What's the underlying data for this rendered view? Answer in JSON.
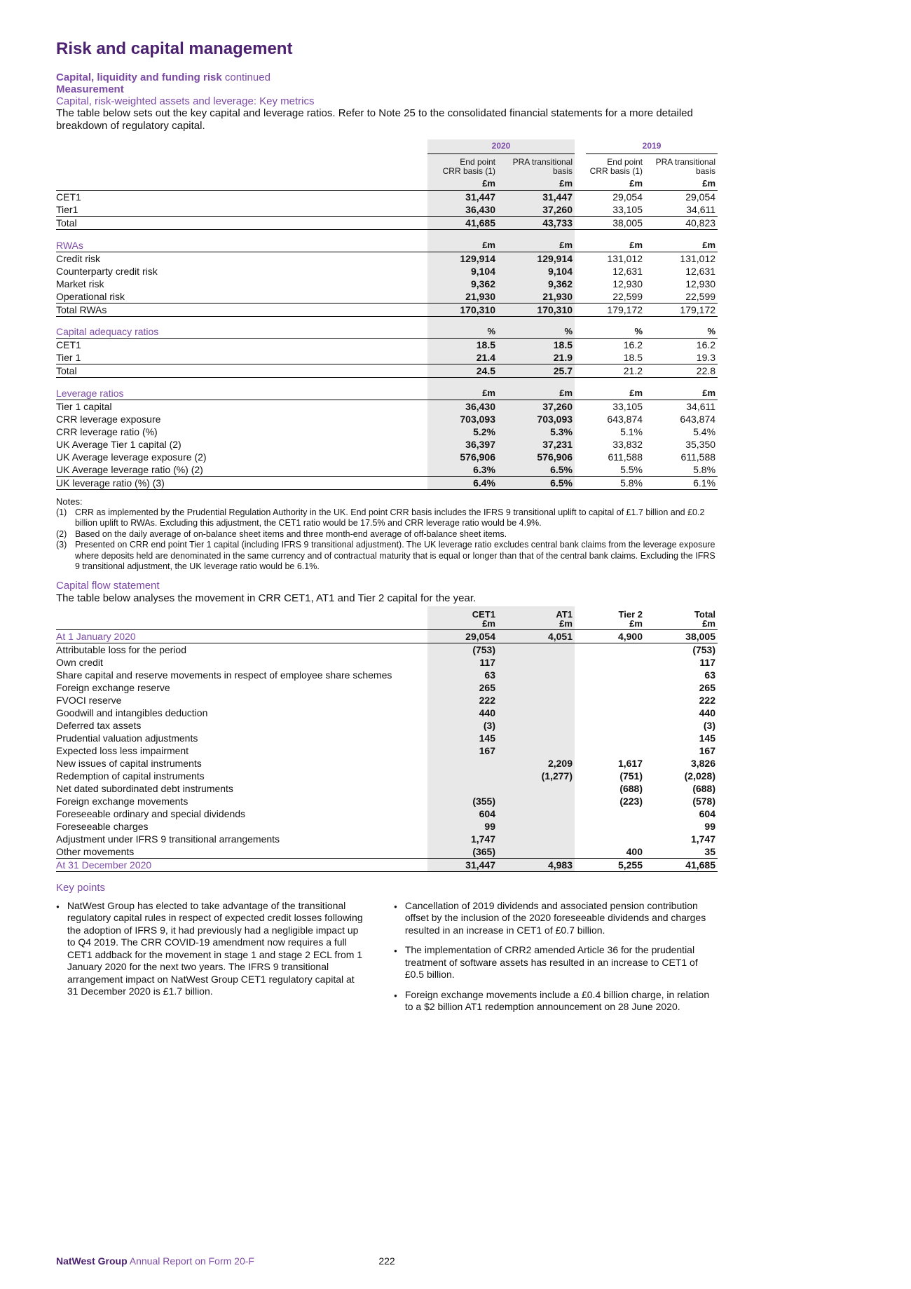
{
  "page": {
    "title": "Risk and capital management",
    "subtitle_bold": "Capital, liquidity and funding risk",
    "subtitle_rest": " continued",
    "measurement": "Measurement",
    "key_metrics_heading": "Capital, risk-weighted assets and leverage: Key metrics",
    "intro_line": "The table below sets out the key capital and leverage ratios. Refer to Note 25 to the consolidated financial statements for a more detailed breakdown of regulatory capital."
  },
  "key_metrics_table": {
    "years": [
      "2020",
      "2019"
    ],
    "col_headers": [
      {
        "line1": "End point",
        "line2": "CRR basis (1)"
      },
      {
        "line1": "PRA transitional",
        "line2": "basis"
      },
      {
        "line1": "End point",
        "line2": "CRR basis (1)"
      },
      {
        "line1": "PRA transitional",
        "line2": "basis"
      }
    ],
    "units_money": [
      "£m",
      "£m",
      "£m",
      "£m"
    ],
    "units_pct": [
      "%",
      "%",
      "%",
      "%"
    ],
    "capital_rows": [
      {
        "label": "CET1",
        "values": [
          "31,447",
          "31,447",
          "29,054",
          "29,054"
        ]
      },
      {
        "label": "Tier1",
        "values": [
          "36,430",
          "37,260",
          "33,105",
          "34,611"
        ]
      },
      {
        "label": "Total",
        "values": [
          "41,685",
          "43,733",
          "38,005",
          "40,823"
        ],
        "total": true
      }
    ],
    "rwas_heading": "RWAs",
    "rwas_rows": [
      {
        "label": "Credit risk",
        "values": [
          "129,914",
          "129,914",
          "131,012",
          "131,012"
        ]
      },
      {
        "label": "Counterparty credit risk",
        "values": [
          "9,104",
          "9,104",
          "12,631",
          "12,631"
        ]
      },
      {
        "label": "Market risk",
        "values": [
          "9,362",
          "9,362",
          "12,930",
          "12,930"
        ]
      },
      {
        "label": "Operational risk",
        "values": [
          "21,930",
          "21,930",
          "22,599",
          "22,599"
        ]
      },
      {
        "label": "Total RWAs",
        "values": [
          "170,310",
          "170,310",
          "179,172",
          "179,172"
        ],
        "total": true
      }
    ],
    "ratios_heading": "Capital adequacy ratios",
    "ratios_rows": [
      {
        "label": "CET1",
        "values": [
          "18.5",
          "18.5",
          "16.2",
          "16.2"
        ]
      },
      {
        "label": "Tier 1",
        "values": [
          "21.4",
          "21.9",
          "18.5",
          "19.3"
        ]
      },
      {
        "label": "Total",
        "values": [
          "24.5",
          "25.7",
          "21.2",
          "22.8"
        ],
        "total": true
      }
    ],
    "leverage_heading": "Leverage ratios",
    "leverage_rows": [
      {
        "label": "Tier 1 capital",
        "values": [
          "36,430",
          "37,260",
          "33,105",
          "34,611"
        ]
      },
      {
        "label": "CRR leverage exposure",
        "values": [
          "703,093",
          "703,093",
          "643,874",
          "643,874"
        ]
      },
      {
        "label": "CRR leverage ratio (%)",
        "values": [
          "5.2%",
          "5.3%",
          "5.1%",
          "5.4%"
        ]
      },
      {
        "label": "UK Average Tier 1 capital (2)",
        "values": [
          "36,397",
          "37,231",
          "33,832",
          "35,350"
        ]
      },
      {
        "label": "UK Average leverage exposure (2)",
        "values": [
          "576,906",
          "576,906",
          "611,588",
          "611,588"
        ]
      },
      {
        "label": "UK Average leverage ratio (%) (2)",
        "values": [
          "6.3%",
          "6.5%",
          "5.5%",
          "5.8%"
        ]
      },
      {
        "label": "UK leverage ratio (%) (3)",
        "values": [
          "6.4%",
          "6.5%",
          "5.8%",
          "6.1%"
        ],
        "total": true
      }
    ]
  },
  "notes": {
    "heading": "Notes:",
    "items": [
      {
        "num": "(1)",
        "text": "CRR as implemented by the Prudential Regulation Authority in the UK. End point CRR basis includes the IFRS 9 transitional uplift to capital of £1.7 billion and £0.2 billion uplift to RWAs. Excluding this adjustment, the CET1 ratio would be 17.5% and CRR leverage ratio would be 4.9%."
      },
      {
        "num": "(2)",
        "text": "Based on the daily average of on-balance sheet items and three month-end average of off-balance sheet items."
      },
      {
        "num": "(3)",
        "text": "Presented on CRR end point Tier 1 capital (including IFRS 9 transitional adjustment). The UK leverage ratio excludes central bank claims from the leverage exposure where deposits held are denominated in the same currency and of contractual maturity that is equal or longer than that of the central bank claims. Excluding the IFRS 9 transitional adjustment, the UK leverage ratio would be 6.1%."
      }
    ]
  },
  "capital_flow": {
    "heading": "Capital flow statement",
    "intro": "The table below analyses the movement in CRR CET1, AT1 and Tier 2 capital for the year.",
    "col_headers": [
      {
        "line1": "CET1",
        "line2": "£m"
      },
      {
        "line1": "AT1",
        "line2": "£m"
      },
      {
        "line1": "Tier 2",
        "line2": "£m"
      },
      {
        "line1": "Total",
        "line2": "£m"
      }
    ],
    "rows": [
      {
        "label": "At 1 January 2020",
        "values": [
          "29,054",
          "4,051",
          "4,900",
          "38,005"
        ],
        "highlight": true,
        "rule": true
      },
      {
        "label": "Attributable loss for the period",
        "values": [
          "(753)",
          "",
          "",
          "(753)"
        ]
      },
      {
        "label": "Own credit",
        "values": [
          "117",
          "",
          "",
          "117"
        ]
      },
      {
        "label": "Share capital and reserve movements in respect of employee share schemes",
        "values": [
          "63",
          "",
          "",
          "63"
        ]
      },
      {
        "label": "Foreign exchange reserve",
        "values": [
          "265",
          "",
          "",
          "265"
        ]
      },
      {
        "label": "FVOCI reserve",
        "values": [
          "222",
          "",
          "",
          "222"
        ]
      },
      {
        "label": "Goodwill and intangibles deduction",
        "values": [
          "440",
          "",
          "",
          "440"
        ]
      },
      {
        "label": "Deferred tax assets",
        "values": [
          "(3)",
          "",
          "",
          "(3)"
        ]
      },
      {
        "label": "Prudential valuation adjustments",
        "values": [
          "145",
          "",
          "",
          "145"
        ]
      },
      {
        "label": "Expected loss less impairment",
        "values": [
          "167",
          "",
          "",
          "167"
        ]
      },
      {
        "label": "New issues of capital instruments",
        "values": [
          "",
          "2,209",
          "1,617",
          "3,826"
        ]
      },
      {
        "label": "Redemption of capital instruments",
        "values": [
          "",
          "(1,277)",
          "(751)",
          "(2,028)"
        ]
      },
      {
        "label": "Net dated subordinated debt instruments",
        "values": [
          "",
          "",
          "(688)",
          "(688)"
        ]
      },
      {
        "label": "Foreign exchange movements",
        "values": [
          "(355)",
          "",
          "(223)",
          "(578)"
        ]
      },
      {
        "label": "Foreseeable ordinary and special dividends",
        "values": [
          "604",
          "",
          "",
          "604"
        ]
      },
      {
        "label": "Foreseeable charges",
        "values": [
          "99",
          "",
          "",
          "99"
        ]
      },
      {
        "label": "Adjustment under IFRS 9 transitional arrangements",
        "values": [
          "1,747",
          "",
          "",
          "1,747"
        ]
      },
      {
        "label": "Other movements",
        "values": [
          "(365)",
          "",
          "400",
          "35"
        ]
      },
      {
        "label": "At 31 December 2020",
        "values": [
          "31,447",
          "4,983",
          "5,255",
          "41,685"
        ],
        "highlight": true,
        "total": true
      }
    ]
  },
  "key_points": {
    "heading": "Key points",
    "left_bullets": [
      "NatWest Group has elected to take advantage of the transitional regulatory capital rules in respect of expected credit losses following the adoption of IFRS 9, it had previously had a negligible impact up to Q4 2019. The CRR COVID-19 amendment now requires a full CET1 addback for the movement in stage 1 and stage 2 ECL from 1 January 2020 for the next two years. The IFRS 9 transitional arrangement impact on NatWest Group CET1 regulatory capital at 31 December 2020 is £1.7 billion."
    ],
    "right_bullets": [
      "Cancellation of 2019 dividends and associated pension contribution offset by the inclusion of the 2020 foreseeable dividends and charges resulted in an increase in CET1 of £0.7 billion.",
      "The implementation of CRR2 amended Article 36 for the prudential treatment of software assets has resulted in an increase to CET1 of £0.5 billion.",
      "Foreign exchange movements include a £0.4 billion charge, in relation to a $2 billion AT1 redemption announcement on 28 June 2020."
    ]
  },
  "footer": {
    "brand": "NatWest Group",
    "report": " Annual Report on Form 20-F",
    "page_number": "222"
  }
}
